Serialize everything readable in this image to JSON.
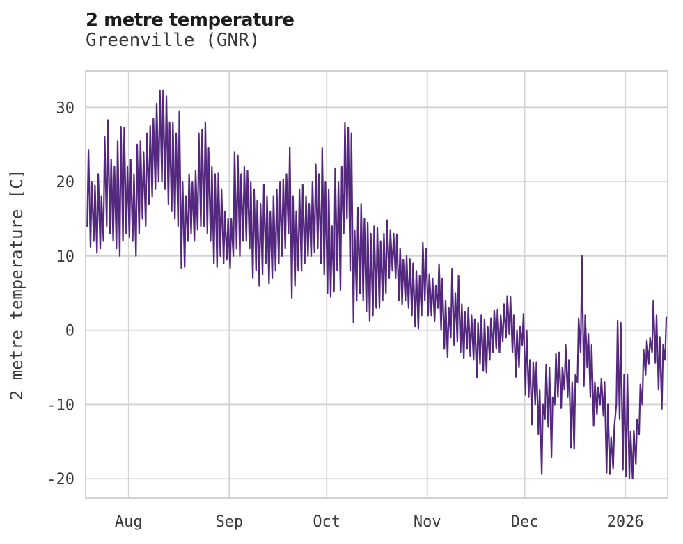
{
  "header": {
    "title": "2 metre temperature",
    "subtitle": "Greenville (GNR)"
  },
  "chart_data": {
    "type": "line",
    "title": "2 metre temperature",
    "subtitle": "Greenville (GNR)",
    "xlabel": "",
    "ylabel": "2 metre temperature [C]",
    "legend": "none",
    "grid": "on",
    "y_ticks": [
      30,
      20,
      10,
      0,
      -10,
      -20
    ],
    "ylim": [
      -22.6,
      34.9
    ],
    "x_tick_labels": [
      "Aug",
      "Sep",
      "Oct",
      "Nov",
      "Dec",
      "2026"
    ],
    "x_tick_days": [
      13.25,
      44.25,
      74.25,
      105.25,
      135.25,
      166.25
    ],
    "xlim_days": [
      0,
      179.3
    ],
    "line_color": "#54287e",
    "grid_color": "#d2d2d2",
    "text_color": "#3a3a3a",
    "title_color": "#1c1c1c",
    "background_color": "#ffffff",
    "series": [
      {
        "name": "2 metre temperature",
        "unit": "C",
        "sampling": "one [daily_min, daily_max] pair per day; day 0 = left edge of plot (~2 weeks before Aug tick), ticks mark month starts, 2026 = Jan 1",
        "daily_min_max": [
          [
            14,
            24.3
          ],
          [
            11.2,
            20
          ],
          [
            12,
            19.5
          ],
          [
            10.4,
            21
          ],
          [
            11,
            18
          ],
          [
            12,
            26
          ],
          [
            14,
            28.3
          ],
          [
            13,
            23
          ],
          [
            12,
            22
          ],
          [
            11,
            25.5
          ],
          [
            10,
            27.4
          ],
          [
            12,
            27.3
          ],
          [
            13,
            22
          ],
          [
            12.5,
            23
          ],
          [
            12,
            21
          ],
          [
            10,
            25
          ],
          [
            13,
            25.5
          ],
          [
            15,
            24
          ],
          [
            14,
            26.5
          ],
          [
            17,
            27.5
          ],
          [
            18,
            28.5
          ],
          [
            19,
            30.5
          ],
          [
            20,
            32.3
          ],
          [
            20,
            32.3
          ],
          [
            19,
            31.5
          ],
          [
            17,
            28
          ],
          [
            16,
            28
          ],
          [
            15,
            26.5
          ],
          [
            14,
            29.5
          ],
          [
            8.4,
            20
          ],
          [
            8.5,
            18
          ],
          [
            12,
            21
          ],
          [
            13,
            20
          ],
          [
            12,
            21.5
          ],
          [
            13.5,
            26.5
          ],
          [
            14,
            27
          ],
          [
            14,
            28
          ],
          [
            13,
            24.5
          ],
          [
            12,
            22
          ],
          [
            9,
            21
          ],
          [
            8.5,
            21.2
          ],
          [
            10,
            19
          ],
          [
            9,
            16
          ],
          [
            9.5,
            15
          ],
          [
            8.4,
            15
          ],
          [
            10,
            24
          ],
          [
            11,
            23.5
          ],
          [
            10,
            21
          ],
          [
            12,
            22
          ],
          [
            12,
            21.5
          ],
          [
            11,
            20
          ],
          [
            7,
            19
          ],
          [
            8,
            17.5
          ],
          [
            6,
            17
          ],
          [
            7.5,
            19.6
          ],
          [
            9,
            18
          ],
          [
            6.3,
            16
          ],
          [
            7,
            18
          ],
          [
            8,
            19
          ],
          [
            9,
            20
          ],
          [
            10,
            20.3
          ],
          [
            11,
            21
          ],
          [
            13,
            24.6
          ],
          [
            4.3,
            18
          ],
          [
            6,
            16
          ],
          [
            8,
            19
          ],
          [
            8,
            19.6
          ],
          [
            9,
            18
          ],
          [
            10,
            17
          ],
          [
            10,
            20
          ],
          [
            10.5,
            22.3
          ],
          [
            11,
            21
          ],
          [
            9,
            24.5
          ],
          [
            7.5,
            20
          ],
          [
            5,
            19
          ],
          [
            4.5,
            14
          ],
          [
            5.2,
            21.8
          ],
          [
            8,
            20
          ],
          [
            5.4,
            22
          ],
          [
            13,
            27.9
          ],
          [
            15,
            27.3
          ],
          [
            8,
            26.5
          ],
          [
            1,
            13.4
          ],
          [
            4,
            16.5
          ],
          [
            5,
            17
          ],
          [
            4,
            15
          ],
          [
            2.5,
            14.5
          ],
          [
            1.2,
            13
          ],
          [
            2,
            14
          ],
          [
            3,
            13.8
          ],
          [
            3,
            12
          ],
          [
            4,
            13
          ],
          [
            5,
            14.8
          ],
          [
            7,
            13.5
          ],
          [
            8,
            13
          ],
          [
            7,
            12.9
          ],
          [
            4,
            11
          ],
          [
            3.5,
            9.5
          ],
          [
            4,
            10
          ],
          [
            3,
            9.6
          ],
          [
            2,
            9
          ],
          [
            0.5,
            8
          ],
          [
            0.2,
            7.3
          ],
          [
            2,
            11.8
          ],
          [
            4,
            11
          ],
          [
            2,
            7.5
          ],
          [
            2,
            7
          ],
          [
            1.2,
            6
          ],
          [
            3,
            8.9
          ],
          [
            0,
            7
          ],
          [
            -2.5,
            4
          ],
          [
            -3.6,
            3
          ],
          [
            -1,
            8.3
          ],
          [
            -2,
            5
          ],
          [
            -1.5,
            7.3
          ],
          [
            -3,
            3.5
          ],
          [
            -3.8,
            2.5
          ],
          [
            -2.5,
            3
          ],
          [
            -3.5,
            2
          ],
          [
            -4,
            1.5
          ],
          [
            -6.4,
            1
          ],
          [
            -4.5,
            2
          ],
          [
            -5.5,
            1.5
          ],
          [
            -5.7,
            0.5
          ],
          [
            -4,
            1.6
          ],
          [
            -3,
            2.7
          ],
          [
            -2.5,
            2.8
          ],
          [
            -3,
            2
          ],
          [
            -1.5,
            3.5
          ],
          [
            -1,
            4.6
          ],
          [
            -0.5,
            4.5
          ],
          [
            -3,
            2
          ],
          [
            -6.3,
            0
          ],
          [
            -5,
            0.5
          ],
          [
            -2,
            2.2
          ],
          [
            -8.7,
            0
          ],
          [
            -9,
            -4
          ],
          [
            -12.7,
            -4.3
          ],
          [
            -10,
            -4.3
          ],
          [
            -14,
            -8
          ],
          [
            -19.4,
            -10
          ],
          [
            -12,
            -4.6
          ],
          [
            -13,
            -5
          ],
          [
            -17.1,
            -9
          ],
          [
            -10,
            -3.1
          ],
          [
            -9,
            -3
          ],
          [
            -10.5,
            -5
          ],
          [
            -8,
            -2
          ],
          [
            -9,
            -4
          ],
          [
            -15.8,
            -7
          ],
          [
            -16,
            -6
          ],
          [
            -7,
            1.6
          ],
          [
            -3,
            10
          ],
          [
            -7.5,
            2
          ],
          [
            -5,
            -0.5
          ],
          [
            -9,
            -2
          ],
          [
            -12.9,
            -7
          ],
          [
            -11.3,
            -7.7
          ],
          [
            -10,
            -6.5
          ],
          [
            -11.5,
            -7
          ],
          [
            -19.2,
            -10
          ],
          [
            -19.4,
            -14.4
          ],
          [
            -18.6,
            -13
          ],
          [
            -10,
            1.3
          ],
          [
            -12,
            1
          ],
          [
            -18.8,
            -6
          ],
          [
            -19.7,
            -5.9
          ],
          [
            -19.9,
            -13.6
          ],
          [
            -20,
            -13.5
          ],
          [
            -18,
            -12
          ],
          [
            -14,
            -7.3
          ],
          [
            -10,
            -2.6
          ],
          [
            -6,
            -1.4
          ],
          [
            -4.5,
            -1
          ],
          [
            -3,
            4
          ],
          [
            -4.4,
            2
          ],
          [
            -8,
            -0.9
          ],
          [
            -10.6,
            -2
          ],
          [
            -4,
            1.8
          ]
        ]
      }
    ]
  }
}
